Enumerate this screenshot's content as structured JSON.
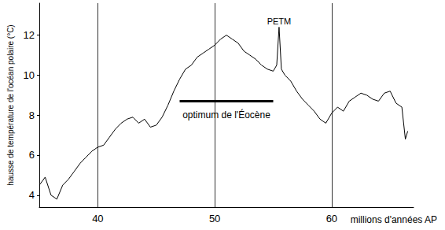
{
  "chart_data": {
    "type": "line",
    "x_label": "millions d'années AP",
    "y_label": "hausse de température de l'océan polaire (°C)",
    "x": [
      35,
      35.5,
      36,
      36.5,
      37,
      37.5,
      38,
      38.5,
      39,
      39.5,
      40,
      40.5,
      41,
      41.5,
      42,
      42.5,
      43,
      43.5,
      44,
      44.5,
      45,
      45.5,
      46,
      46.5,
      47,
      47.5,
      48,
      48.5,
      49,
      49.5,
      50,
      50.5,
      51,
      51.5,
      52,
      52.5,
      53,
      53.5,
      54,
      54.5,
      55,
      55.3,
      55.5,
      55.7,
      56,
      56.5,
      57,
      57.5,
      58,
      58.5,
      59,
      59.5,
      60,
      60.5,
      61,
      61.5,
      62,
      62.5,
      63,
      63.5,
      64,
      64.5,
      65,
      65.5,
      66,
      66.3,
      66.5
    ],
    "values": [
      4.5,
      4.9,
      4.0,
      3.8,
      4.5,
      4.8,
      5.2,
      5.6,
      5.9,
      6.2,
      6.4,
      6.5,
      6.9,
      7.3,
      7.6,
      7.8,
      7.9,
      7.6,
      7.8,
      7.4,
      7.5,
      7.9,
      8.5,
      9.2,
      9.8,
      10.3,
      10.5,
      10.9,
      11.1,
      11.3,
      11.5,
      11.8,
      12.0,
      11.8,
      11.6,
      11.2,
      11.0,
      10.8,
      10.5,
      10.3,
      10.2,
      10.5,
      12.4,
      10.3,
      10.0,
      9.7,
      9.2,
      8.8,
      8.5,
      8.2,
      7.8,
      7.6,
      8.1,
      8.4,
      8.2,
      8.7,
      8.9,
      9.1,
      9.0,
      8.8,
      8.7,
      9.1,
      9.2,
      8.6,
      8.4,
      6.8,
      7.2
    ],
    "color": "#000000",
    "xlim": [
      35,
      67
    ],
    "xticks": [
      40,
      50,
      60
    ],
    "ylim": [
      3.4,
      13.6
    ],
    "yticks": [
      4,
      6,
      8,
      10,
      12
    ],
    "grid": "x",
    "annotations": [
      {
        "text": "PETM",
        "x": 55.5,
        "y": 12.4
      },
      {
        "text": "optimum de l'Éocène",
        "x": [
          47,
          55
        ],
        "y": 8.7
      }
    ]
  }
}
